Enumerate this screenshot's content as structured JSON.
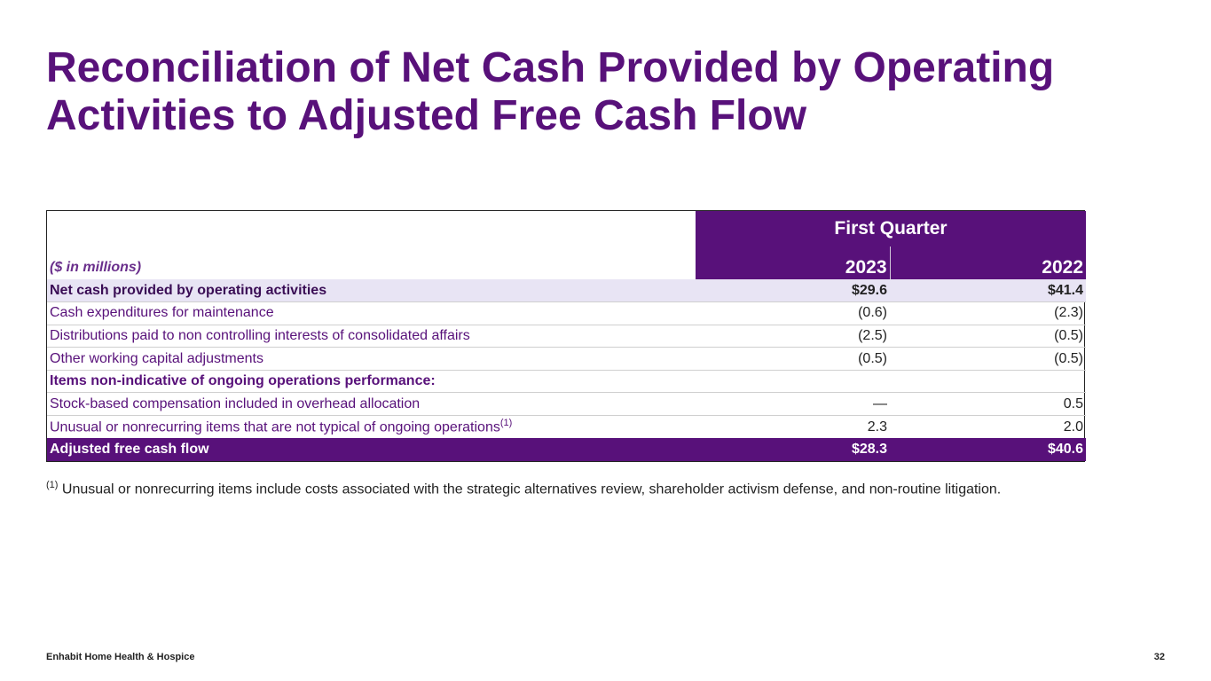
{
  "title": "Reconciliation of Net Cash Provided by Operating Activities to Adjusted Free Cash Flow",
  "table": {
    "units_label": "($ in millions)",
    "period_header": "First Quarter",
    "columns": [
      "2023",
      "2022"
    ],
    "rows": [
      {
        "label": "Net cash provided by operating activities",
        "sup": "",
        "v2023": "$29.6",
        "v2022": "$41.4"
      },
      {
        "label": "Cash expenditures for maintenance",
        "sup": "",
        "v2023": "(0.6)",
        "v2022": "(2.3)"
      },
      {
        "label": "Distributions paid to non controlling interests of consolidated affairs",
        "sup": "",
        "v2023": "(2.5)",
        "v2022": "(0.5)"
      },
      {
        "label": "Other working capital adjustments",
        "sup": "",
        "v2023": "(0.5)",
        "v2022": "(0.5)"
      },
      {
        "label": "Items non-indicative of ongoing operations performance:",
        "sup": "",
        "v2023": "",
        "v2022": ""
      },
      {
        "label": "Stock-based compensation included in overhead allocation",
        "sup": "",
        "v2023": "—",
        "v2022": "0.5"
      },
      {
        "label": "Unusual or nonrecurring items that are not typical of ongoing operations",
        "sup": "(1)",
        "v2023": "2.3",
        "v2022": "2.0"
      },
      {
        "label": "Adjusted free cash flow",
        "sup": "",
        "v2023": "$28.3",
        "v2022": "$40.6"
      }
    ]
  },
  "footnote": {
    "marker": "(1)",
    "text": " Unusual or nonrecurring items include costs associated with the strategic alternatives review, shareholder activism defense, and non-routine litigation."
  },
  "footer": {
    "company": "Enhabit Home Health & Hospice",
    "page_number": "32"
  },
  "colors": {
    "brand_purple": "#58117a",
    "highlight_row": "#e8e4f4"
  }
}
